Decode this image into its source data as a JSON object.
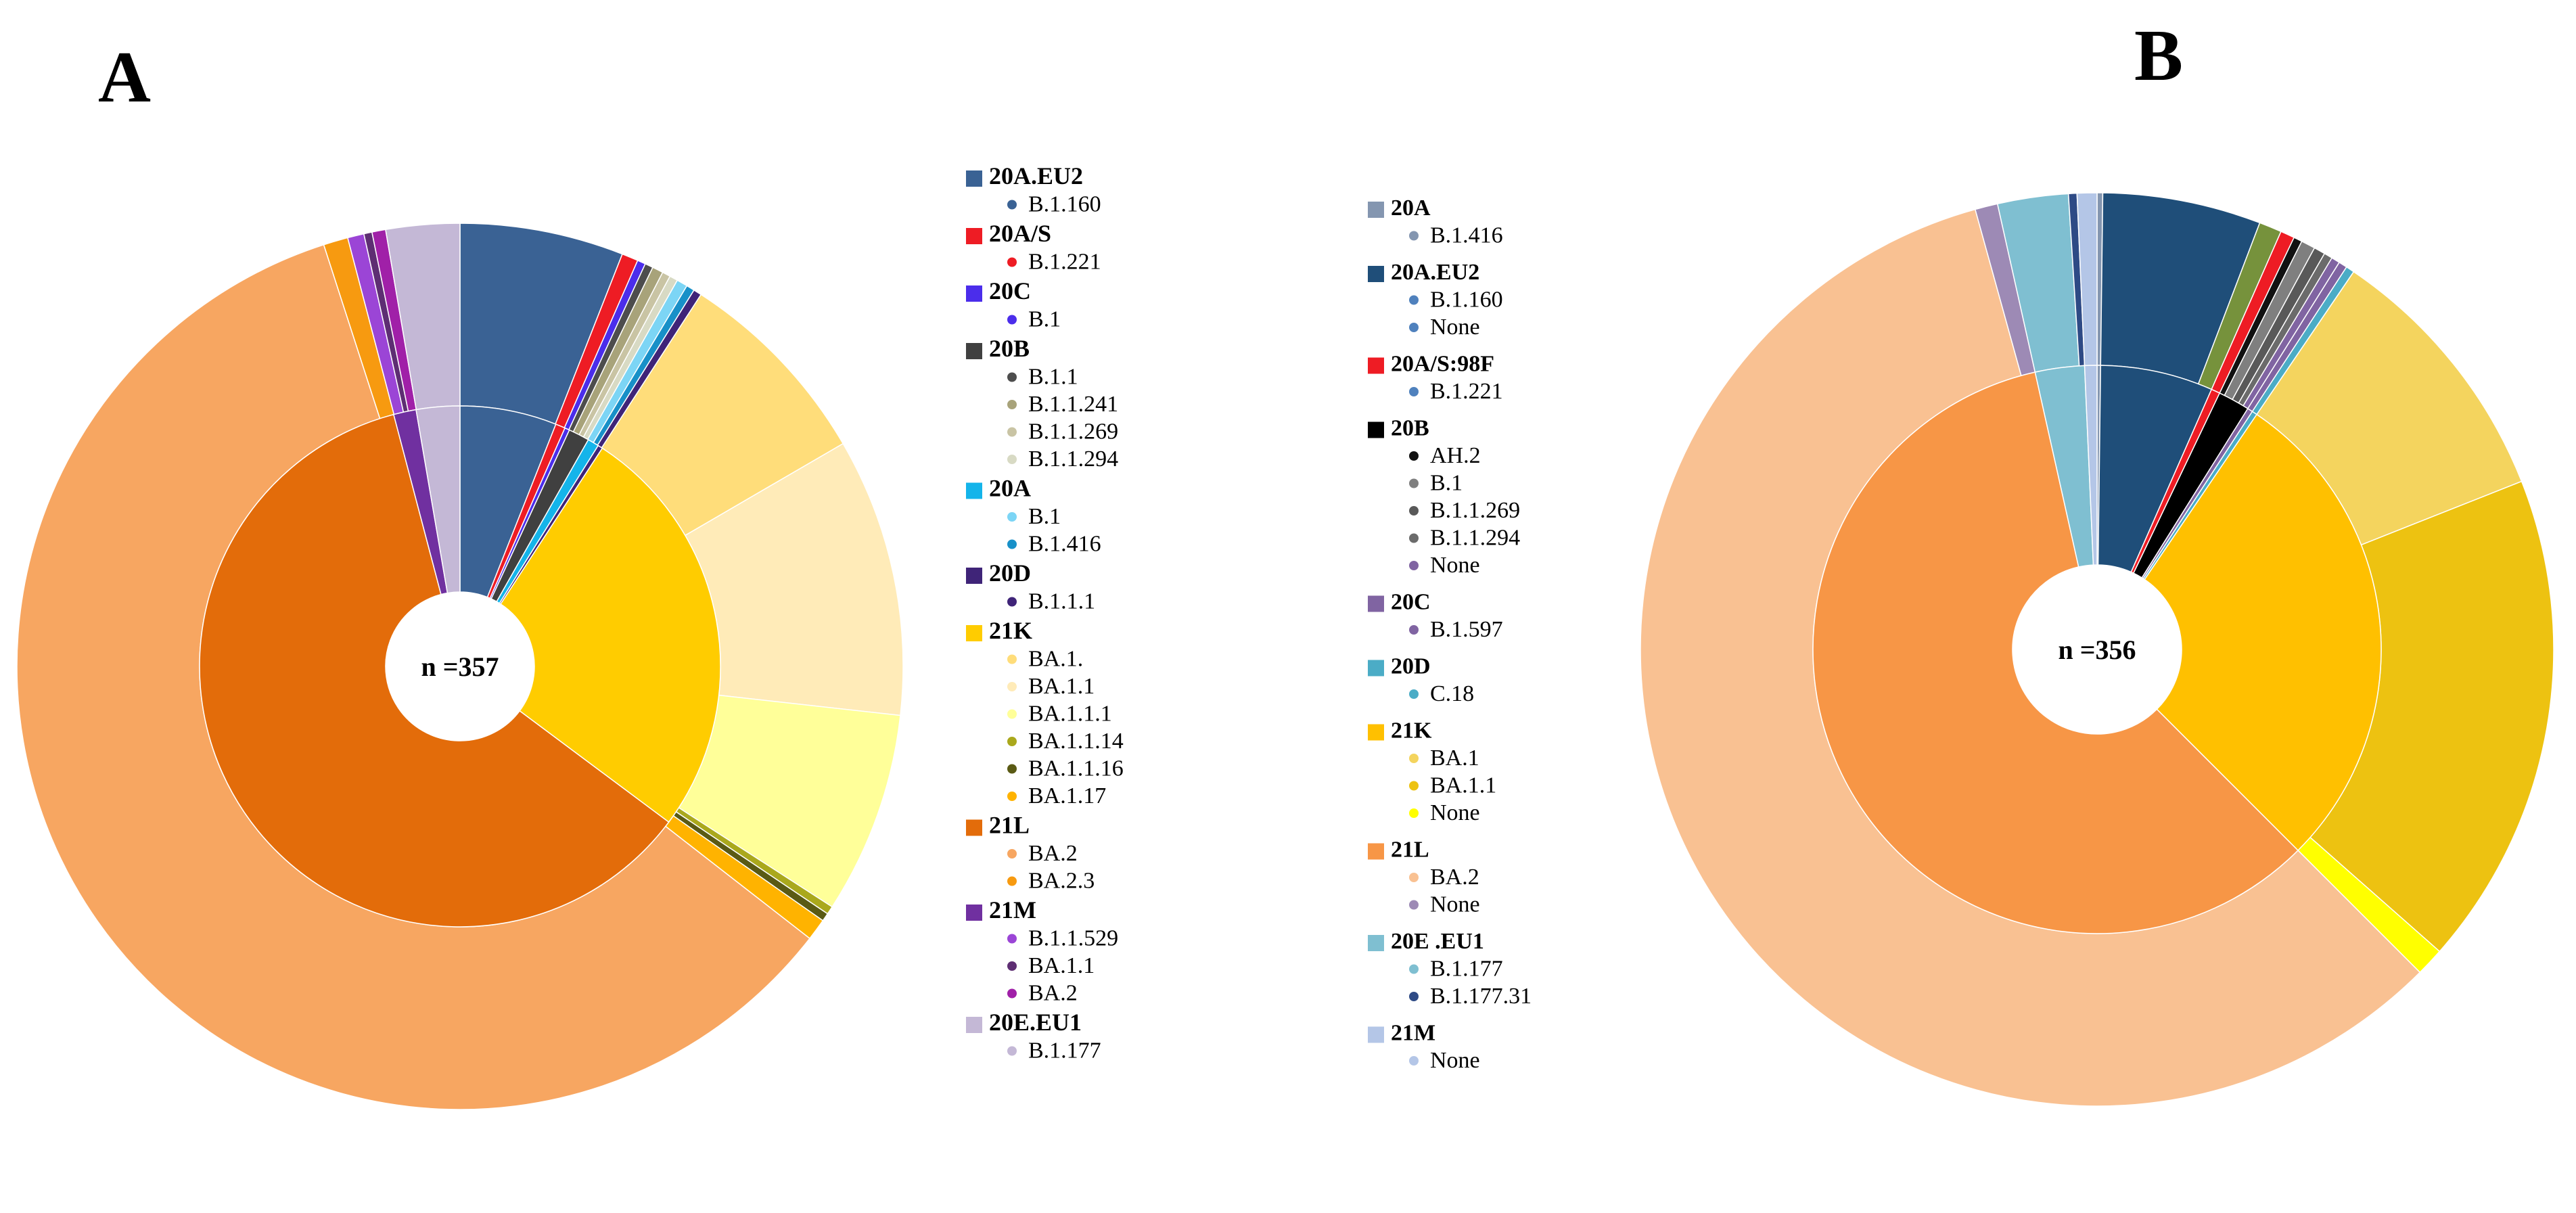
{
  "chart_data": [
    {
      "type": "pie",
      "panel_label": "A",
      "center_label": "n =357",
      "inner_ring": [
        {
          "name": "20A.EU2",
          "value": 6.0,
          "color": "#3A6294"
        },
        {
          "name": "20A/S",
          "value": 0.6,
          "color": "#EE1C24"
        },
        {
          "name": "20C",
          "value": 0.3,
          "color": "#4B2DEB"
        },
        {
          "name": "20B",
          "value": 1.3,
          "color": "#404040"
        },
        {
          "name": "20A",
          "value": 0.7,
          "color": "#14B4EA"
        },
        {
          "name": "20D",
          "value": 0.3,
          "color": "#3F2478"
        },
        {
          "name": "21K",
          "value": 26.0,
          "color": "#FFCC00"
        },
        {
          "name": "21L",
          "value": 60.7,
          "color": "#E36C0A"
        },
        {
          "name": "21M",
          "value": 1.4,
          "color": "#7030A0"
        },
        {
          "name": "20E.EU1",
          "value": 2.7,
          "color": "#C4B8D6"
        }
      ],
      "outer_ring": [
        {
          "name": "B.1.160",
          "value": 6.0,
          "color": "#3A6294"
        },
        {
          "name": "B.1.221",
          "value": 0.6,
          "color": "#EE1C24"
        },
        {
          "name": "B.1",
          "value": 0.3,
          "color": "#4B2DEB"
        },
        {
          "name": "B.1.1",
          "value": 0.3,
          "color": "#4D4D4D"
        },
        {
          "name": "B.1.1.241",
          "value": 0.4,
          "color": "#A8A37A"
        },
        {
          "name": "B.1.1.269",
          "value": 0.3,
          "color": "#C9C4A4"
        },
        {
          "name": "B.1.1.294",
          "value": 0.3,
          "color": "#D8DAC4"
        },
        {
          "name": "B.1",
          "value": 0.4,
          "color": "#7CD5F5"
        },
        {
          "name": "B.1.416",
          "value": 0.3,
          "color": "#1890C8"
        },
        {
          "name": "B.1.1.1",
          "value": 0.3,
          "color": "#3F2478"
        },
        {
          "name": "BA.1.",
          "value": 7.5,
          "color": "#FFDD7A"
        },
        {
          "name": "BA.1.1",
          "value": 10.2,
          "color": "#FFEBB8"
        },
        {
          "name": "BA.1.1.1",
          "value": 7.4,
          "color": "#FFFF99"
        },
        {
          "name": "BA.1.1.14",
          "value": 0.3,
          "color": "#AAA81C"
        },
        {
          "name": "BA.1.1.16",
          "value": 0.3,
          "color": "#5A5A14"
        },
        {
          "name": "BA.1.17",
          "value": 0.8,
          "color": "#FFB300"
        },
        {
          "name": "BA.2",
          "value": 59.8,
          "color": "#F7A661"
        },
        {
          "name": "BA.2.3",
          "value": 0.9,
          "color": "#F79A10"
        },
        {
          "name": "B.1.1.529",
          "value": 0.6,
          "color": "#9B45D6"
        },
        {
          "name": "BA.1.1",
          "value": 0.3,
          "color": "#5E2E73"
        },
        {
          "name": "BA.2",
          "value": 0.5,
          "color": "#A020A8"
        },
        {
          "name": "B.1.177",
          "value": 2.7,
          "color": "#C4B8D6"
        }
      ],
      "legend": [
        {
          "clade": "20A.EU2",
          "color": "#3A6294",
          "lineages": [
            {
              "name": "B.1.160",
              "color": "#3A6294"
            }
          ]
        },
        {
          "clade": "20A/S",
          "color": "#EE1C24",
          "lineages": [
            {
              "name": "B.1.221",
              "color": "#EE1C24"
            }
          ]
        },
        {
          "clade": "20C",
          "color": "#4B2DEB",
          "lineages": [
            {
              "name": "B.1",
              "color": "#4B2DEB"
            }
          ]
        },
        {
          "clade": "20B",
          "color": "#404040",
          "lineages": [
            {
              "name": "B.1.1",
              "color": "#4D4D4D"
            },
            {
              "name": "B.1.1.241",
              "color": "#A8A37A"
            },
            {
              "name": "B.1.1.269",
              "color": "#C9C4A4"
            },
            {
              "name": "B.1.1.294",
              "color": "#D8DAC4"
            }
          ]
        },
        {
          "clade": "20A",
          "color": "#14B4EA",
          "lineages": [
            {
              "name": "B.1",
              "color": "#7CD5F5"
            },
            {
              "name": "B.1.416",
              "color": "#1890C8"
            }
          ]
        },
        {
          "clade": "20D",
          "color": "#3F2478",
          "lineages": [
            {
              "name": "B.1.1.1",
              "color": "#3F2478"
            }
          ]
        },
        {
          "clade": "21K",
          "color": "#FFCC00",
          "lineages": [
            {
              "name": "BA.1.",
              "color": "#FFDD7A"
            },
            {
              "name": "BA.1.1",
              "color": "#FFEBB8"
            },
            {
              "name": "BA.1.1.1",
              "color": "#FFFF99"
            },
            {
              "name": "BA.1.1.14",
              "color": "#AAA81C"
            },
            {
              "name": "BA.1.1.16",
              "color": "#5A5A14"
            },
            {
              "name": "BA.1.17",
              "color": "#FFB300"
            }
          ]
        },
        {
          "clade": "21L",
          "color": "#E36C0A",
          "lineages": [
            {
              "name": "BA.2",
              "color": "#F7A661"
            },
            {
              "name": "BA.2.3",
              "color": "#F79A10"
            }
          ]
        },
        {
          "clade": "21M",
          "color": "#7030A0",
          "lineages": [
            {
              "name": "B.1.1.529",
              "color": "#9B45D6"
            },
            {
              "name": "BA.1.1",
              "color": "#5E2E73"
            },
            {
              "name": "BA.2",
              "color": "#A020A8"
            }
          ]
        },
        {
          "clade": "20E.EU1",
          "color": "#C4B8D6",
          "lineages": [
            {
              "name": "B.1.177",
              "color": "#C4B8D6"
            }
          ]
        }
      ]
    },
    {
      "type": "pie",
      "panel_label": "B",
      "center_label": "n =356",
      "inner_ring": [
        {
          "name": "20A",
          "value": 0.2,
          "color": "#8496B0"
        },
        {
          "name": "20A.EU2",
          "value": 6.4,
          "color": "#1F4E79"
        },
        {
          "name": "20A/S:98F",
          "value": 0.5,
          "color": "#EE1C24"
        },
        {
          "name": "20B",
          "value": 1.8,
          "color": "#000000"
        },
        {
          "name": "20C",
          "value": 0.3,
          "color": "#8064A2"
        },
        {
          "name": "20D",
          "value": 0.3,
          "color": "#4BACC6"
        },
        {
          "name": "21K",
          "value": 28.0,
          "color": "#FFC000"
        },
        {
          "name": "21L",
          "value": 59.0,
          "color": "#F79646"
        },
        {
          "name": "20E.EU1",
          "value": 2.8,
          "color": "#7FBFD1"
        },
        {
          "name": "21M",
          "value": 0.7,
          "color": "#B4C6E7"
        }
      ],
      "outer_ring": [
        {
          "name": "B.1.416",
          "value": 0.2,
          "color": "#8496B0"
        },
        {
          "name": "B.1.160",
          "value": 5.6,
          "color": "#1F4E79"
        },
        {
          "name": "None",
          "value": 0.8,
          "color": "#76923C"
        },
        {
          "name": "B.1.221",
          "value": 0.5,
          "color": "#EE1C24"
        },
        {
          "name": "AH.2",
          "value": 0.3,
          "color": "#111111"
        },
        {
          "name": "B.1",
          "value": 0.5,
          "color": "#7F7F7F"
        },
        {
          "name": "B.1.1.269",
          "value": 0.4,
          "color": "#595959"
        },
        {
          "name": "B.1.1.294",
          "value": 0.3,
          "color": "#6B6B6B"
        },
        {
          "name": "None",
          "value": 0.3,
          "color": "#8064A2"
        },
        {
          "name": "B.1.597",
          "value": 0.3,
          "color": "#8064A2"
        },
        {
          "name": "C.18",
          "value": 0.3,
          "color": "#4BACC6"
        },
        {
          "name": "BA.1",
          "value": 9.5,
          "color": "#F4D45E"
        },
        {
          "name": "BA.1.1",
          "value": 17.5,
          "color": "#EDC211"
        },
        {
          "name": "None",
          "value": 1.0,
          "color": "#FFFF00"
        },
        {
          "name": "BA.2",
          "value": 58.2,
          "color": "#F9C192"
        },
        {
          "name": "None",
          "value": 0.8,
          "color": "#9D8AB5"
        },
        {
          "name": "B.1.177",
          "value": 2.5,
          "color": "#7FBFD1"
        },
        {
          "name": "B.1.177.31",
          "value": 0.3,
          "color": "#2E4A85"
        },
        {
          "name": "None",
          "value": 0.7,
          "color": "#B4C6E7"
        }
      ],
      "legend": [
        {
          "clade": "20A",
          "color": "#8496B0",
          "lineages": [
            {
              "name": "B.1.416",
              "color": "#8496B0"
            }
          ]
        },
        {
          "clade": "20A.EU2",
          "color": "#1F4E79",
          "lineages": [
            {
              "name": "B.1.160",
              "color": "#4F81BD"
            },
            {
              "name": "None",
              "color": "#4F81BD"
            }
          ]
        },
        {
          "clade": "20A/S:98F",
          "color": "#EE1C24",
          "lineages": [
            {
              "name": "B.1.221",
              "color": "#4F81BD"
            }
          ]
        },
        {
          "clade": "20B",
          "color": "#000000",
          "lineages": [
            {
              "name": "AH.2",
              "color": "#111111"
            },
            {
              "name": "B.1",
              "color": "#7F7F7F"
            },
            {
              "name": "B.1.1.269",
              "color": "#595959"
            },
            {
              "name": "B.1.1.294",
              "color": "#6B6B6B"
            },
            {
              "name": "None",
              "color": "#8064A2"
            }
          ]
        },
        {
          "clade": "20C",
          "color": "#8064A2",
          "lineages": [
            {
              "name": "B.1.597",
              "color": "#8064A2"
            }
          ]
        },
        {
          "clade": "20D",
          "color": "#4BACC6",
          "lineages": [
            {
              "name": "C.18",
              "color": "#4BACC6"
            }
          ]
        },
        {
          "clade": "21K",
          "color": "#FFC000",
          "lineages": [
            {
              "name": "BA.1",
              "color": "#F4D45E"
            },
            {
              "name": "BA.1.1",
              "color": "#EDC211"
            },
            {
              "name": "None",
              "color": "#FFFF00"
            }
          ]
        },
        {
          "clade": "21L",
          "color": "#F79646",
          "lineages": [
            {
              "name": "BA.2",
              "color": "#F9C192"
            },
            {
              "name": "None",
              "color": "#9D8AB5"
            }
          ]
        },
        {
          "clade": "20E .EU1",
          "color": "#7FBFD1",
          "lineages": [
            {
              "name": "B.1.177",
              "color": "#7FBFD1"
            },
            {
              "name": "B.1.177.31",
              "color": "#2E4A85"
            }
          ]
        },
        {
          "clade": "21M",
          "color": "#B4C6E7",
          "lineages": [
            {
              "name": "None",
              "color": "#B4C6E7"
            }
          ]
        }
      ]
    }
  ]
}
